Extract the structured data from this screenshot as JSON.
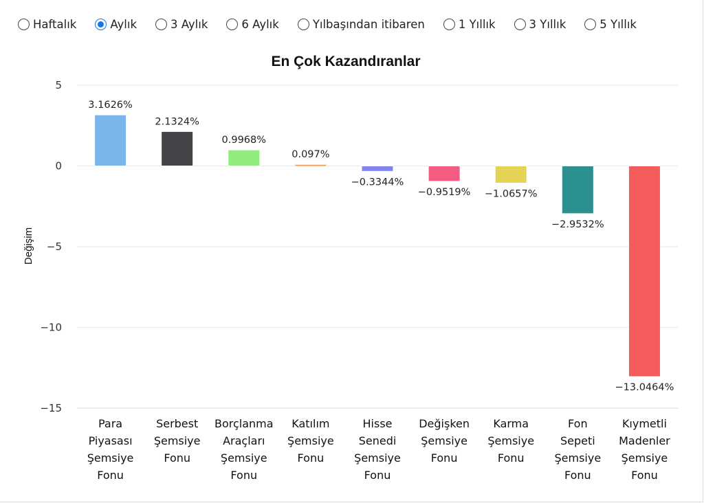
{
  "periods": [
    {
      "label": "Haftalık",
      "selected": false
    },
    {
      "label": "Aylık",
      "selected": true
    },
    {
      "label": "3 Aylık",
      "selected": false
    },
    {
      "label": "6 Aylık",
      "selected": false
    },
    {
      "label": "Yılbaşından itibaren",
      "selected": false
    },
    {
      "label": "1 Yıllık",
      "selected": false
    },
    {
      "label": "3 Yıllık",
      "selected": false
    },
    {
      "label": "5 Yıllık",
      "selected": false
    }
  ],
  "chart_data": {
    "type": "bar",
    "title": "En Çok Kazandıranlar",
    "xlabel": "",
    "ylabel": "Değişim",
    "ylim": [
      -15,
      5
    ],
    "yticks": [
      5,
      0,
      -5,
      -10,
      -15
    ],
    "grid": true,
    "legend": "none",
    "categories": [
      [
        "Para",
        "Piyasası",
        "Şemsiye",
        "Fonu"
      ],
      [
        "Serbest",
        "Şemsiye",
        "Fonu"
      ],
      [
        "Borçlanma",
        "Araçları",
        "Şemsiye",
        "Fonu"
      ],
      [
        "Katılım",
        "Şemsiye",
        "Fonu"
      ],
      [
        "Hisse",
        "Senedi",
        "Şemsiye",
        "Fonu"
      ],
      [
        "Değişken",
        "Şemsiye",
        "Fonu"
      ],
      [
        "Karma",
        "Şemsiye",
        "Fonu"
      ],
      [
        "Fon",
        "Sepeti",
        "Şemsiye",
        "Fonu"
      ],
      [
        "Kıymetli",
        "Madenler",
        "Şemsiye",
        "Fonu"
      ]
    ],
    "values": [
      3.1626,
      2.1324,
      0.9968,
      0.097,
      -0.3344,
      -0.9519,
      -1.0657,
      -2.9532,
      -13.0464
    ],
    "value_labels": [
      "3.1626%",
      "2.1324%",
      "0.9968%",
      "0.097%",
      "−0.3344%",
      "−0.9519%",
      "−1.0657%",
      "−2.9532%",
      "−13.0464%"
    ],
    "colors": [
      "#7cb5ec",
      "#434348",
      "#90ed7d",
      "#f7a35c",
      "#8085e9",
      "#f15c80",
      "#e4d354",
      "#2b908f",
      "#f45b5b"
    ]
  }
}
